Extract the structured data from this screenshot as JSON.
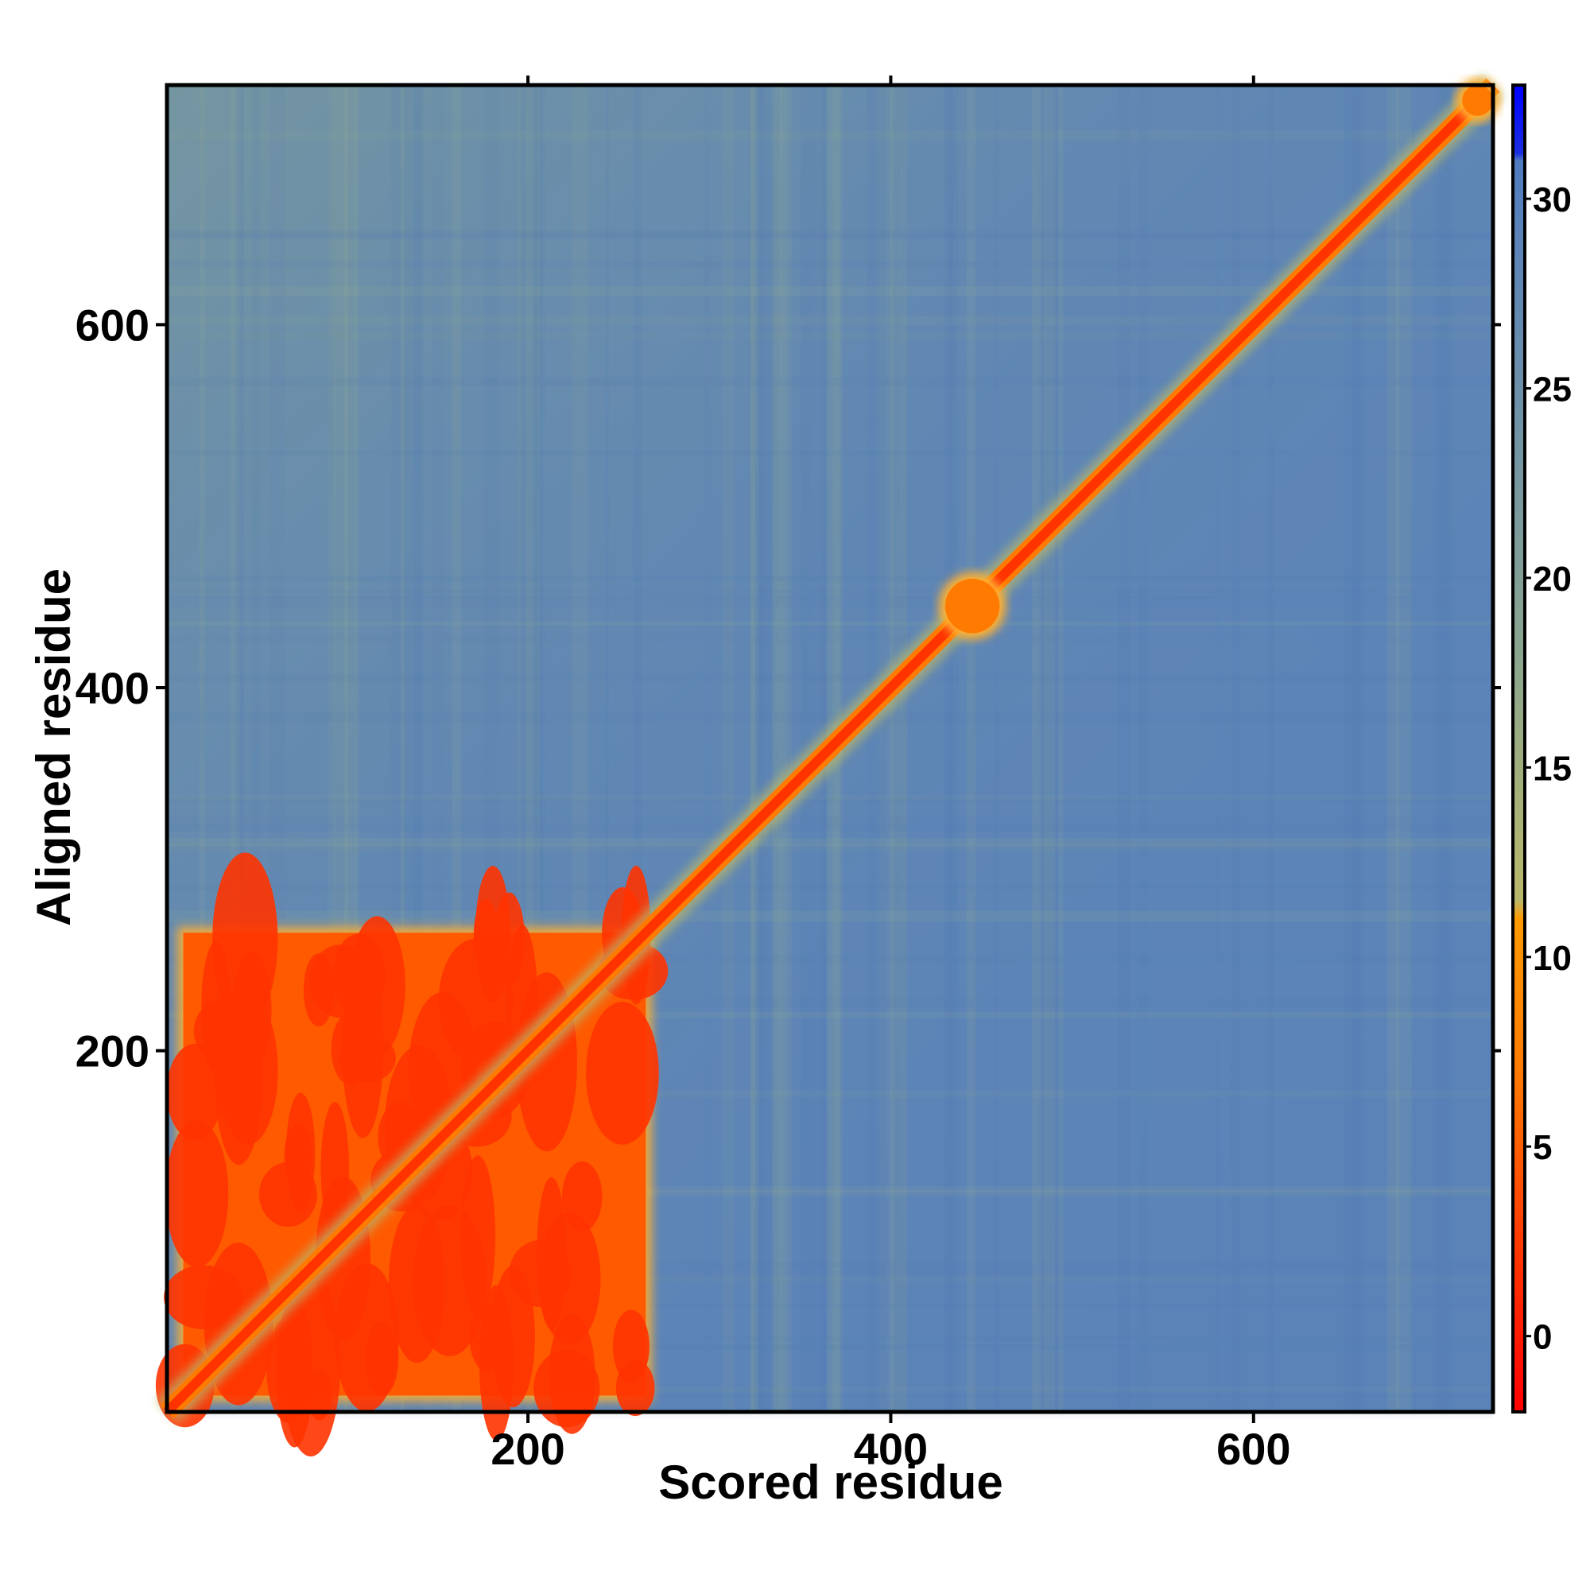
{
  "chart_data": {
    "type": "heatmap",
    "title": "",
    "xlabel": "Scored residue",
    "ylabel": "Aligned residue",
    "xlim": [
      1,
      732
    ],
    "ylim": [
      1,
      732
    ],
    "x_ticks": [
      200,
      400,
      600
    ],
    "y_ticks": [
      200,
      400,
      600
    ],
    "grid": false,
    "legend": "colorbar-right",
    "colorbar": {
      "range": [
        -2,
        33
      ],
      "ticks": [
        0,
        5,
        10,
        15,
        20,
        25,
        30
      ],
      "stops": [
        {
          "value": -2,
          "color": "#ff0000"
        },
        {
          "value": 2,
          "color": "#ff3300"
        },
        {
          "value": 7,
          "color": "#ff7a00"
        },
        {
          "value": 11,
          "color": "#ff9900"
        },
        {
          "value": 11.5,
          "color": "#b9b86a"
        },
        {
          "value": 18,
          "color": "#8aa58e"
        },
        {
          "value": 29,
          "color": "#5b83b8"
        },
        {
          "value": 31,
          "color": "#4f7cc0"
        },
        {
          "value": 31.2,
          "color": "#1a2ee0"
        },
        {
          "value": 33,
          "color": "#0000ff"
        }
      ]
    },
    "background_value": 28,
    "regions": [
      {
        "name": "domain-1 block",
        "x": [
          10,
          265
        ],
        "y": [
          10,
          265
        ],
        "value": 2
      },
      {
        "name": "diagonal",
        "x": [
          1,
          732
        ],
        "y": [
          1,
          732
        ],
        "value": 1
      },
      {
        "name": "blob near 445",
        "x": [
          430,
          460
        ],
        "y": [
          430,
          460
        ],
        "value": 6
      },
      {
        "name": "corner near 725",
        "x": [
          715,
          732
        ],
        "y": [
          715,
          732
        ],
        "value": 5
      }
    ]
  }
}
